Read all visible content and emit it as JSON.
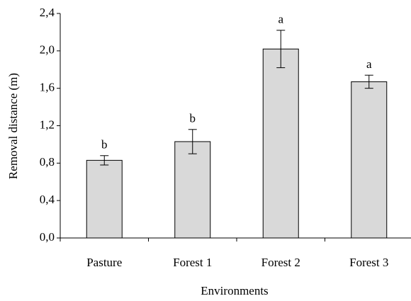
{
  "chart_data": {
    "type": "bar",
    "x_label": "Environments",
    "y_label": "Removal distance (m)",
    "categories": [
      "Pasture",
      "Forest 1",
      "Forest 2",
      "Forest 3"
    ],
    "values": [
      0.83,
      1.03,
      2.02,
      1.67
    ],
    "errors": [
      0.05,
      0.13,
      0.2,
      0.07
    ],
    "annotations": [
      "b",
      "b",
      "a",
      "a"
    ],
    "color": "#d9d9d9",
    "ylim": [
      0,
      2.4
    ],
    "yticks": [
      {
        "value": 0,
        "label": "0,0"
      },
      {
        "value": 0.4,
        "label": "0,4"
      },
      {
        "value": 0.8,
        "label": "0,8"
      },
      {
        "value": 1.2,
        "label": "1,2"
      },
      {
        "value": 1.6,
        "label": "1,6"
      },
      {
        "value": 2.0,
        "label": "2,0"
      },
      {
        "value": 2.4,
        "label": "2,4"
      }
    ],
    "grid": false
  }
}
